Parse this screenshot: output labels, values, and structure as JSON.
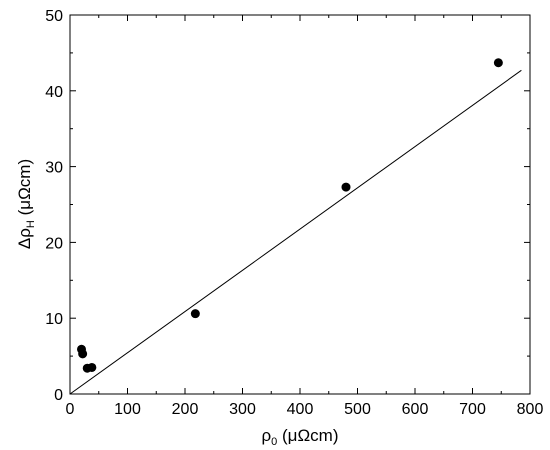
{
  "chart_data": {
    "type": "scatter",
    "xlabel": {
      "symbol": "ρ",
      "sub": "0",
      "unit": " (μΩcm)"
    },
    "ylabel": {
      "symbol": "Δρ",
      "sub": "H",
      "unit": " (μΩcm)"
    },
    "xlim": [
      0,
      800
    ],
    "ylim": [
      0,
      50
    ],
    "xticks": [
      0,
      100,
      200,
      300,
      400,
      500,
      600,
      700,
      800
    ],
    "yticks": [
      0,
      10,
      20,
      30,
      40,
      50
    ],
    "grid": false,
    "legend": "none",
    "colors": {
      "points": "#000000",
      "fit_line": "#000000",
      "axes": "#000000"
    },
    "series": [
      {
        "kind": "points",
        "x": [
          20,
          22,
          30,
          38,
          218,
          480,
          745
        ],
        "y": [
          5.9,
          5.3,
          3.4,
          3.5,
          10.6,
          27.3,
          43.7
        ]
      },
      {
        "kind": "line",
        "x": [
          0,
          785
        ],
        "y": [
          0,
          42.7
        ]
      }
    ]
  }
}
